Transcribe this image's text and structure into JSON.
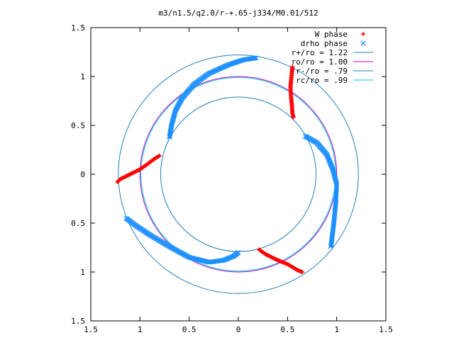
{
  "chart_data": {
    "type": "scatter",
    "title": "m3/n1.5/q2.0/r-+.65-j334/M0.01/512",
    "xlabel": "",
    "ylabel": "",
    "xlim": [
      -1.5,
      1.5
    ],
    "ylim": [
      -1.5,
      1.5
    ],
    "x_ticks": [
      -1.5,
      -1,
      -0.5,
      0,
      0.5,
      1,
      1.5
    ],
    "y_ticks": [
      -1.5,
      -1,
      -0.5,
      0,
      0.5,
      1,
      1.5
    ],
    "x_tick_labels": [
      "1.5",
      "1",
      "0.5",
      "0",
      "0.5",
      "1",
      "1.5"
    ],
    "y_tick_labels": [
      "1.5",
      "1",
      "0.5",
      "0",
      "0.5",
      "1",
      "1.5"
    ],
    "grid": false,
    "legend_position": "top-right",
    "circles": [
      {
        "name": "r+/ro = 1.22",
        "radius": 1.22,
        "color": "#1f7fbf"
      },
      {
        "name": "ro/ro = 1.00",
        "radius": 1.0,
        "color": "#bf00bf"
      },
      {
        "name": "r-/ro = .79",
        "radius": 0.79,
        "color": "#1f7fbf"
      },
      {
        "name": "rc/ro = .99",
        "radius": 0.99,
        "color": "#00c8e0"
      }
    ],
    "series": [
      {
        "name": "W phase",
        "marker": "plus",
        "color": "#ff0000",
        "arms": [
          [
            [
              0.55,
              1.1
            ],
            [
              0.54,
              1.0
            ],
            [
              0.53,
              0.9
            ],
            [
              0.535,
              0.8
            ],
            [
              0.545,
              0.7
            ],
            [
              0.55,
              0.62
            ],
            [
              0.56,
              0.58
            ]
          ],
          [
            [
              -0.8,
              0.19
            ],
            [
              -0.85,
              0.16
            ],
            [
              -0.93,
              0.1
            ],
            [
              -1.0,
              0.05
            ],
            [
              -1.1,
              0.0
            ],
            [
              -1.2,
              -0.05
            ],
            [
              -1.23,
              -0.08
            ]
          ],
          [
            [
              0.21,
              -0.77
            ],
            [
              0.28,
              -0.82
            ],
            [
              0.38,
              -0.87
            ],
            [
              0.5,
              -0.92
            ],
            [
              0.6,
              -0.98
            ],
            [
              0.65,
              -1.0
            ]
          ]
        ]
      },
      {
        "name": "drho phase",
        "marker": "cross",
        "color": "#1e90ff",
        "arms": [
          [
            [
              0.18,
              1.19
            ],
            [
              0.05,
              1.17
            ],
            [
              -0.1,
              1.12
            ],
            [
              -0.3,
              1.03
            ],
            [
              -0.45,
              0.92
            ],
            [
              -0.57,
              0.78
            ],
            [
              -0.64,
              0.65
            ],
            [
              -0.68,
              0.5
            ],
            [
              -0.7,
              0.38
            ]
          ],
          [
            [
              0.68,
              0.39
            ],
            [
              0.8,
              0.32
            ],
            [
              0.9,
              0.2
            ],
            [
              0.96,
              0.05
            ],
            [
              1.0,
              -0.1
            ],
            [
              0.99,
              -0.3
            ],
            [
              0.97,
              -0.5
            ],
            [
              0.95,
              -0.67
            ],
            [
              0.94,
              -0.74
            ]
          ],
          [
            [
              -1.14,
              -0.45
            ],
            [
              -1.05,
              -0.52
            ],
            [
              -0.9,
              -0.62
            ],
            [
              -0.7,
              -0.74
            ],
            [
              -0.5,
              -0.85
            ],
            [
              -0.3,
              -0.9
            ],
            [
              -0.15,
              -0.88
            ],
            [
              -0.05,
              -0.84
            ],
            [
              0.0,
              -0.8
            ]
          ]
        ]
      }
    ]
  }
}
